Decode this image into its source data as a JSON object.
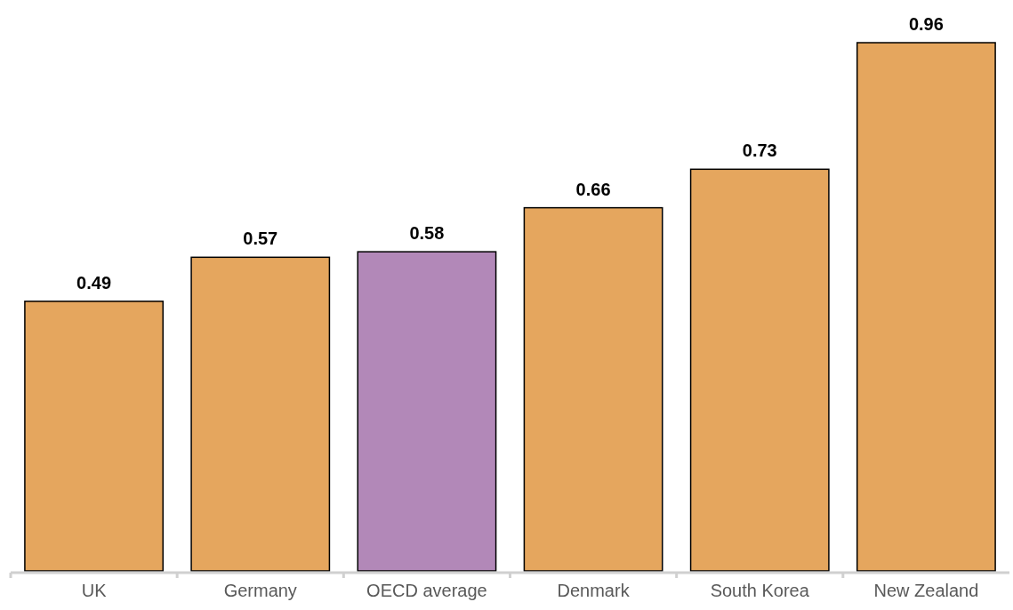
{
  "chart_data": {
    "type": "bar",
    "categories": [
      "UK",
      "Germany",
      "OECD average",
      "Denmark",
      "South Korea",
      "New Zealand"
    ],
    "values": [
      0.49,
      0.57,
      0.58,
      0.66,
      0.73,
      0.96
    ],
    "colors": [
      "#e5a65e",
      "#e5a65e",
      "#b288b8",
      "#e5a65e",
      "#e5a65e",
      "#e5a65e"
    ],
    "data_labels": true
  }
}
